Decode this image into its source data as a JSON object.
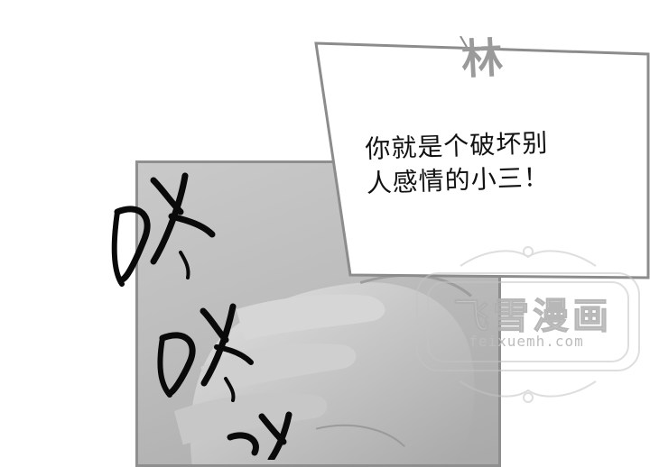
{
  "speaker": {
    "name": "林"
  },
  "dialogue": {
    "line1": "你就是个破坏别",
    "line2": "人感情的小三！"
  },
  "watermark": {
    "title": "飞雪漫画",
    "url": "feixuemh.com"
  },
  "colors": {
    "panel_gray": "#bdbdbd",
    "panel_border": "#8f8f8f",
    "ink": "#111111",
    "speaker": "#9a9a9a"
  },
  "icons": {
    "sfx": "knock-sound-effect",
    "hand": "knocking-hand"
  }
}
